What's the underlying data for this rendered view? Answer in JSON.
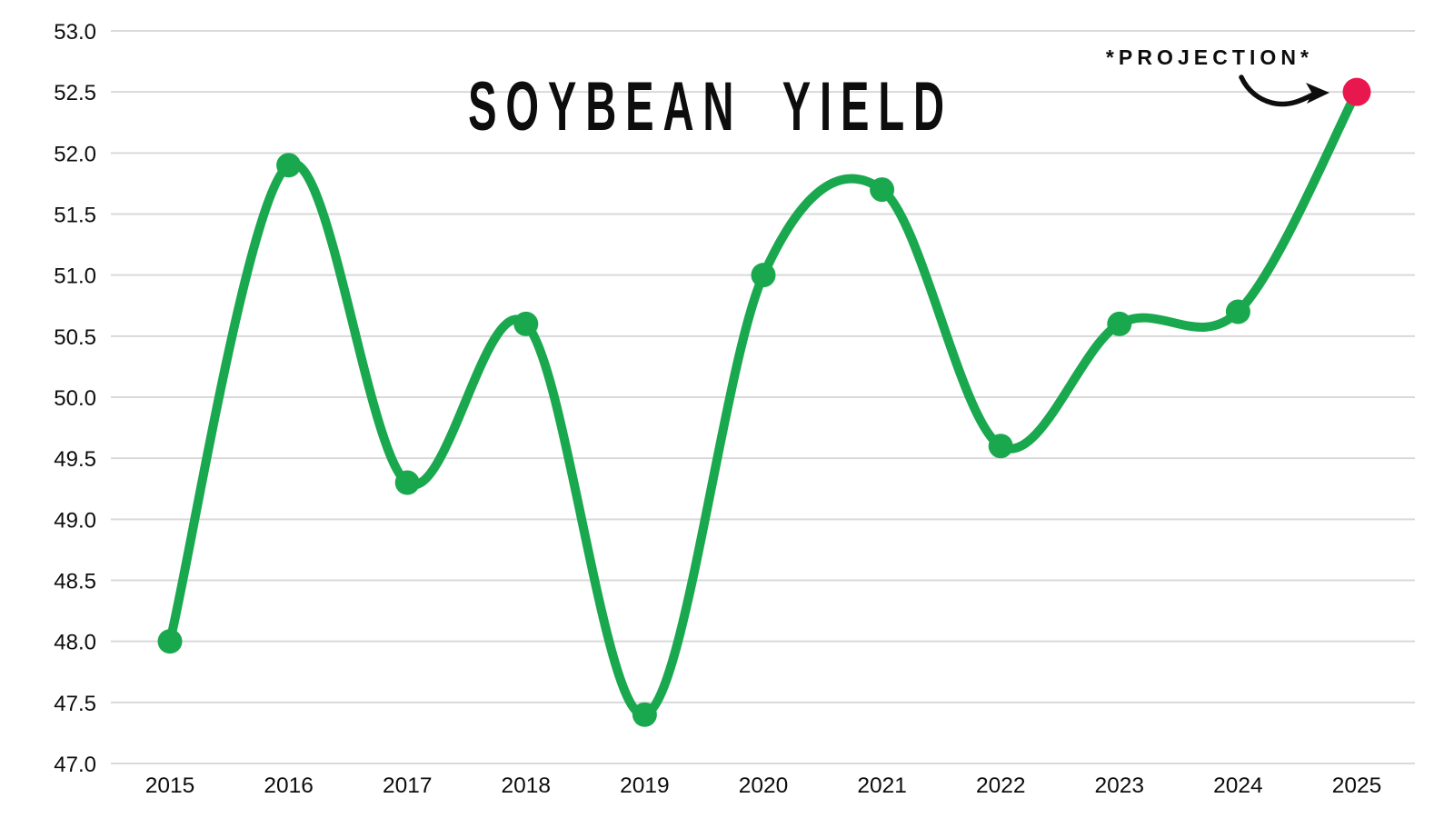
{
  "chart_data": {
    "type": "line",
    "title": "SOYBEAN YIELD",
    "x_labels": [
      "2015",
      "2016",
      "2017",
      "2018",
      "2019",
      "2020",
      "2021",
      "2022",
      "2023",
      "2024",
      "2025"
    ],
    "values": [
      48.0,
      51.9,
      49.3,
      50.6,
      47.4,
      51.0,
      51.7,
      49.6,
      50.6,
      50.7,
      52.5
    ],
    "y_ticks": [
      "53.0",
      "52.5",
      "52.0",
      "51.5",
      "51.0",
      "50.5",
      "50.0",
      "49.5",
      "49.0",
      "48.5",
      "48.0",
      "47.5",
      "47.0"
    ],
    "ylim": [
      47.0,
      53.0
    ],
    "ytick_step": 0.5,
    "grid": true,
    "legend": "none",
    "annotation": {
      "label": "*PROJECTION*",
      "target_x": "2025",
      "target_value": 52.5
    },
    "colors": {
      "line": "#1AA84E",
      "point": "#1AA84E",
      "projection_point": "#E8184E",
      "gridline": "#D9D9D9",
      "text": "#0D0D0D",
      "arrow": "#0D0D0D"
    }
  }
}
